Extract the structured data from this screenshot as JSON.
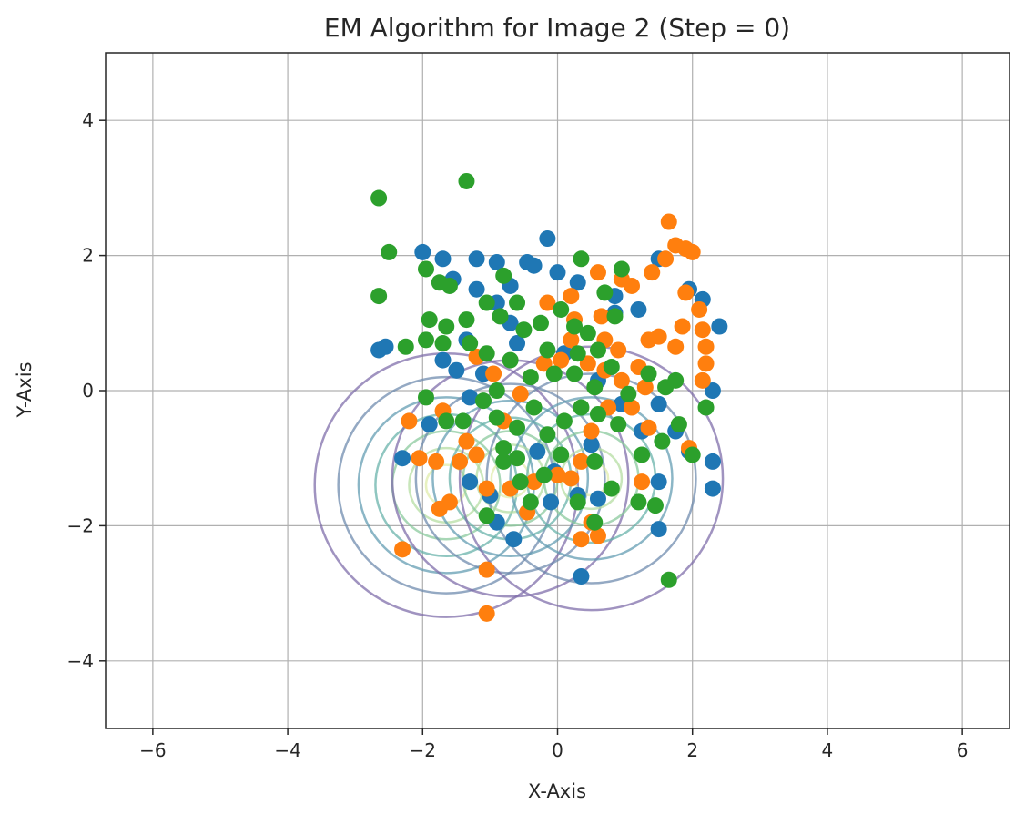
{
  "chart_data": {
    "type": "scatter",
    "title": "EM Algorithm for Image 2 (Step = 0)",
    "xlabel": "X-Axis",
    "ylabel": "Y-Axis",
    "xlim": [
      -6.7,
      6.7
    ],
    "ylim": [
      -5,
      5
    ],
    "xticks": [
      -6,
      -4,
      -2,
      0,
      2,
      4,
      6
    ],
    "yticks": [
      -4,
      -2,
      0,
      2,
      4
    ],
    "xtick_labels": [
      "−6",
      "−4",
      "−2",
      "0",
      "2",
      "4",
      "6"
    ],
    "ytick_labels": [
      "−4",
      "−2",
      "0",
      "2",
      "4"
    ],
    "grid": true,
    "colors": {
      "series_blue": "#1f77b4",
      "series_orange": "#ff7f0e",
      "series_green": "#2ca02c",
      "grid": "#b0b0b0",
      "axes": "#262626"
    },
    "series": [
      {
        "color": "#1f77b4",
        "points": [
          [
            -2.65,
            0.6
          ],
          [
            -2.55,
            0.65
          ],
          [
            -2.0,
            2.05
          ],
          [
            -1.7,
            1.95
          ],
          [
            -1.2,
            1.95
          ],
          [
            -0.9,
            1.9
          ],
          [
            -0.45,
            1.9
          ],
          [
            -0.35,
            1.85
          ],
          [
            -0.15,
            2.25
          ],
          [
            0.0,
            1.75
          ],
          [
            -1.55,
            1.65
          ],
          [
            -1.2,
            1.5
          ],
          [
            -0.7,
            1.55
          ],
          [
            -0.9,
            1.3
          ],
          [
            0.3,
            1.6
          ],
          [
            0.85,
            1.4
          ],
          [
            1.5,
            1.95
          ],
          [
            1.95,
            1.5
          ],
          [
            2.15,
            1.35
          ],
          [
            2.4,
            0.95
          ],
          [
            2.3,
            0.0
          ],
          [
            2.3,
            -1.05
          ],
          [
            2.3,
            -1.45
          ],
          [
            1.95,
            -0.9
          ],
          [
            1.75,
            -0.6
          ],
          [
            1.5,
            -0.2
          ],
          [
            1.5,
            -1.35
          ],
          [
            1.5,
            -2.05
          ],
          [
            -1.9,
            -0.5
          ],
          [
            -2.3,
            -1.0
          ],
          [
            -1.7,
            0.45
          ],
          [
            -1.5,
            0.3
          ],
          [
            -1.3,
            -0.1
          ],
          [
            -1.0,
            -1.55
          ],
          [
            -0.9,
            -1.95
          ],
          [
            -0.65,
            -2.2
          ],
          [
            -0.1,
            -1.65
          ],
          [
            0.3,
            -1.55
          ],
          [
            0.6,
            -1.6
          ],
          [
            0.35,
            -2.75
          ],
          [
            -0.05,
            -1.2
          ],
          [
            0.5,
            -0.8
          ],
          [
            0.1,
            0.55
          ],
          [
            0.6,
            0.15
          ],
          [
            -0.6,
            0.7
          ],
          [
            -1.1,
            0.25
          ],
          [
            1.2,
            1.2
          ],
          [
            0.95,
            -0.2
          ],
          [
            -0.3,
            -0.9
          ],
          [
            -1.3,
            -1.35
          ],
          [
            0.85,
            1.15
          ],
          [
            1.25,
            -0.6
          ],
          [
            -0.7,
            1.0
          ],
          [
            -1.35,
            0.75
          ]
        ]
      },
      {
        "color": "#ff7f0e",
        "points": [
          [
            1.65,
            2.5
          ],
          [
            1.75,
            2.15
          ],
          [
            1.9,
            2.1
          ],
          [
            2.0,
            2.05
          ],
          [
            1.6,
            1.95
          ],
          [
            1.4,
            1.75
          ],
          [
            0.95,
            1.65
          ],
          [
            0.6,
            1.75
          ],
          [
            0.2,
            1.4
          ],
          [
            0.25,
            1.05
          ],
          [
            1.9,
            1.45
          ],
          [
            2.1,
            1.2
          ],
          [
            2.15,
            0.9
          ],
          [
            1.85,
            0.95
          ],
          [
            1.5,
            0.8
          ],
          [
            1.35,
            0.75
          ],
          [
            1.75,
            0.65
          ],
          [
            2.2,
            0.65
          ],
          [
            2.2,
            0.4
          ],
          [
            2.15,
            0.15
          ],
          [
            1.2,
            0.35
          ],
          [
            0.9,
            0.6
          ],
          [
            0.7,
            0.75
          ],
          [
            0.95,
            0.15
          ],
          [
            1.3,
            0.05
          ],
          [
            1.1,
            -0.25
          ],
          [
            1.35,
            -0.55
          ],
          [
            0.75,
            -0.25
          ],
          [
            0.5,
            -0.6
          ],
          [
            0.35,
            -1.05
          ],
          [
            0.2,
            -1.3
          ],
          [
            1.95,
            -0.85
          ],
          [
            1.25,
            -1.35
          ],
          [
            -2.2,
            -0.45
          ],
          [
            -2.05,
            -1.0
          ],
          [
            -1.8,
            -1.05
          ],
          [
            -1.45,
            -1.05
          ],
          [
            -1.7,
            -0.3
          ],
          [
            -1.35,
            -0.75
          ],
          [
            -1.2,
            -0.95
          ],
          [
            -1.05,
            -1.45
          ],
          [
            -1.75,
            -1.75
          ],
          [
            -1.6,
            -1.65
          ],
          [
            -2.3,
            -2.35
          ],
          [
            -1.05,
            -2.65
          ],
          [
            -1.05,
            -3.3
          ],
          [
            0.35,
            -2.2
          ],
          [
            0.6,
            -2.15
          ],
          [
            0.5,
            -1.95
          ],
          [
            -0.35,
            -1.35
          ],
          [
            -0.45,
            -1.8
          ],
          [
            -0.7,
            -1.45
          ],
          [
            0.0,
            -1.25
          ],
          [
            -0.8,
            -0.45
          ],
          [
            -0.55,
            -0.05
          ],
          [
            -0.2,
            0.4
          ],
          [
            0.05,
            0.45
          ],
          [
            0.2,
            0.75
          ],
          [
            0.45,
            0.4
          ],
          [
            -0.15,
            1.3
          ],
          [
            0.65,
            1.1
          ],
          [
            1.1,
            1.55
          ],
          [
            0.7,
            0.3
          ],
          [
            -0.95,
            0.25
          ],
          [
            -1.2,
            0.5
          ]
        ]
      },
      {
        "color": "#2ca02c",
        "points": [
          [
            -2.65,
            2.85
          ],
          [
            -1.35,
            3.1
          ],
          [
            -2.5,
            2.05
          ],
          [
            -2.65,
            1.4
          ],
          [
            -1.95,
            1.8
          ],
          [
            -1.75,
            1.6
          ],
          [
            -1.6,
            1.55
          ],
          [
            -1.9,
            1.05
          ],
          [
            -1.65,
            0.95
          ],
          [
            -1.35,
            1.05
          ],
          [
            -1.05,
            1.3
          ],
          [
            -0.8,
            1.7
          ],
          [
            -0.6,
            1.3
          ],
          [
            -0.85,
            1.1
          ],
          [
            -0.5,
            0.9
          ],
          [
            -0.25,
            1.0
          ],
          [
            0.05,
            1.2
          ],
          [
            0.25,
            0.95
          ],
          [
            0.45,
            0.85
          ],
          [
            0.7,
            1.45
          ],
          [
            0.95,
            1.8
          ],
          [
            0.35,
            1.95
          ],
          [
            -2.25,
            0.65
          ],
          [
            -1.95,
            0.75
          ],
          [
            -1.7,
            0.7
          ],
          [
            -1.95,
            -0.1
          ],
          [
            -1.65,
            -0.45
          ],
          [
            -1.4,
            -0.45
          ],
          [
            -1.1,
            -0.15
          ],
          [
            -0.9,
            -0.4
          ],
          [
            -0.6,
            -0.55
          ],
          [
            -0.35,
            -0.25
          ],
          [
            -0.15,
            -0.65
          ],
          [
            0.1,
            -0.45
          ],
          [
            0.35,
            -0.25
          ],
          [
            0.6,
            -0.35
          ],
          [
            0.9,
            -0.5
          ],
          [
            1.05,
            -0.05
          ],
          [
            1.35,
            0.25
          ],
          [
            1.6,
            0.05
          ],
          [
            1.75,
            0.15
          ],
          [
            1.8,
            -0.5
          ],
          [
            2.0,
            -0.95
          ],
          [
            2.2,
            -0.25
          ],
          [
            1.55,
            -0.75
          ],
          [
            1.25,
            -0.95
          ],
          [
            0.8,
            -1.45
          ],
          [
            0.55,
            -1.05
          ],
          [
            0.3,
            -1.65
          ],
          [
            0.55,
            -1.95
          ],
          [
            1.2,
            -1.65
          ],
          [
            1.45,
            -1.7
          ],
          [
            1.65,
            -2.8
          ],
          [
            -0.8,
            -1.05
          ],
          [
            -0.55,
            -1.35
          ],
          [
            -0.2,
            -1.25
          ],
          [
            0.05,
            -0.95
          ],
          [
            -0.4,
            -1.65
          ],
          [
            -1.05,
            -1.85
          ],
          [
            -0.8,
            -0.85
          ],
          [
            -0.4,
            0.2
          ],
          [
            -0.05,
            0.25
          ],
          [
            0.25,
            0.25
          ],
          [
            0.55,
            0.05
          ],
          [
            0.8,
            0.35
          ],
          [
            -0.7,
            0.45
          ],
          [
            -1.05,
            0.55
          ],
          [
            -1.3,
            0.7
          ],
          [
            0.3,
            0.55
          ],
          [
            0.6,
            0.6
          ],
          [
            0.85,
            1.1
          ],
          [
            -0.15,
            0.6
          ],
          [
            -0.6,
            -1.0
          ],
          [
            -0.9,
            0.0
          ]
        ]
      }
    ],
    "contours": [
      {
        "center": [
          -1.65,
          -1.4
        ],
        "radii": [
          1.95,
          1.6,
          1.3,
          1.05,
          0.8,
          0.55,
          0.3
        ]
      },
      {
        "center": [
          -0.7,
          -1.3
        ],
        "radii": [
          1.75,
          1.4,
          1.15,
          0.9,
          0.7,
          0.5,
          0.28
        ]
      },
      {
        "center": [
          0.5,
          -1.3
        ],
        "radii": [
          1.95,
          1.55,
          1.2,
          0.95,
          0.7,
          0.45,
          0.25
        ]
      }
    ],
    "contour_level_colors": [
      "#7b6aa8",
      "#6b88ac",
      "#5e9ab0",
      "#64b0a8",
      "#86c79a",
      "#b3dca0",
      "#dfeca8"
    ]
  }
}
